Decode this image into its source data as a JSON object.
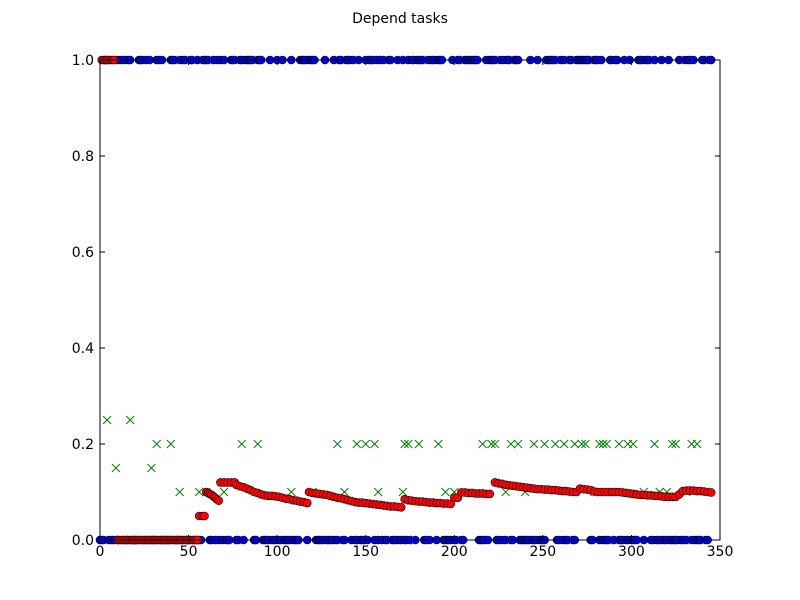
{
  "chart_data": {
    "type": "scatter",
    "title": "Depend tasks",
    "xlabel": "",
    "ylabel": "",
    "xlim": [
      0,
      350
    ],
    "ylim": [
      0.0,
      1.0
    ],
    "x_ticks": [
      "0",
      "50",
      "100",
      "150",
      "200",
      "250",
      "300",
      "350"
    ],
    "y_ticks": [
      "0.0",
      "0.2",
      "0.4",
      "0.6",
      "0.8",
      "1.0"
    ],
    "grid": false,
    "legend": "none",
    "series": [
      {
        "marker": "circle",
        "color": "#0000ff",
        "value_set": [
          0.0,
          1.0
        ],
        "x_range": [
          0,
          345
        ],
        "note_points": "binary per-task series: each task x plotted at 0 or 1"
      },
      {
        "marker": "x",
        "color": "#008000",
        "points": [
          [
            4,
            0.25
          ],
          [
            9,
            0.15
          ],
          [
            17,
            0.25
          ],
          [
            29,
            0.15
          ],
          [
            32,
            0.2
          ],
          [
            40,
            0.2
          ],
          [
            45,
            0.1
          ],
          [
            56,
            0.1
          ],
          [
            60,
            0.1
          ],
          [
            70,
            0.1
          ],
          [
            80,
            0.2
          ],
          [
            89,
            0.2
          ],
          [
            108,
            0.1
          ],
          [
            120,
            0.1
          ],
          [
            134,
            0.2
          ],
          [
            138,
            0.1
          ],
          [
            145,
            0.2
          ],
          [
            150,
            0.2
          ],
          [
            155,
            0.2
          ],
          [
            157,
            0.1
          ],
          [
            171,
            0.1
          ],
          [
            172,
            0.2
          ],
          [
            174,
            0.2
          ],
          [
            180,
            0.2
          ],
          [
            191,
            0.2
          ],
          [
            195,
            0.1
          ],
          [
            200,
            0.1
          ],
          [
            216,
            0.2
          ],
          [
            221,
            0.2
          ],
          [
            223,
            0.2
          ],
          [
            229,
            0.1
          ],
          [
            232,
            0.2
          ],
          [
            236,
            0.2
          ],
          [
            240,
            0.1
          ],
          [
            245,
            0.2
          ],
          [
            251,
            0.2
          ],
          [
            257,
            0.2
          ],
          [
            262,
            0.2
          ],
          [
            268,
            0.2
          ],
          [
            272,
            0.2
          ],
          [
            274,
            0.2
          ],
          [
            279,
            0.1
          ],
          [
            282,
            0.2
          ],
          [
            284,
            0.2
          ],
          [
            286,
            0.2
          ],
          [
            293,
            0.2
          ],
          [
            298,
            0.2
          ],
          [
            301,
            0.2
          ],
          [
            307,
            0.1
          ],
          [
            313,
            0.2
          ],
          [
            316,
            0.1
          ],
          [
            320,
            0.1
          ],
          [
            323,
            0.2
          ],
          [
            325,
            0.2
          ],
          [
            331,
            0.1
          ],
          [
            334,
            0.2
          ],
          [
            337,
            0.2
          ]
        ]
      },
      {
        "marker": "circle",
        "color": "#ff0000",
        "points": [
          [
            1,
            1.0
          ],
          [
            2,
            1.0
          ],
          [
            3,
            1.0
          ],
          [
            4,
            1.0
          ],
          [
            5,
            1.0
          ],
          [
            6,
            1.0
          ],
          [
            7,
            1.0
          ],
          [
            8,
            1.0
          ],
          [
            10,
            0.0
          ],
          [
            55,
            0.0
          ],
          [
            56,
            0.05
          ],
          [
            58,
            0.05
          ],
          [
            59,
            0.05
          ],
          [
            60,
            0.1
          ],
          [
            61,
            0.098
          ],
          [
            62,
            0.096
          ],
          [
            63,
            0.094
          ],
          [
            64,
            0.091
          ],
          [
            65,
            0.088
          ],
          [
            66,
            0.085
          ],
          [
            67,
            0.082
          ],
          [
            68,
            0.12
          ],
          [
            70,
            0.12
          ],
          [
            72,
            0.12
          ],
          [
            74,
            0.12
          ],
          [
            76,
            0.12
          ],
          [
            77,
            0.115
          ],
          [
            79,
            0.112
          ],
          [
            81,
            0.11
          ],
          [
            83,
            0.107
          ],
          [
            85,
            0.104
          ],
          [
            87,
            0.1
          ],
          [
            89,
            0.098
          ],
          [
            91,
            0.095
          ],
          [
            93,
            0.093
          ],
          [
            95,
            0.092
          ],
          [
            97,
            0.092
          ],
          [
            99,
            0.091
          ],
          [
            101,
            0.09
          ],
          [
            103,
            0.088
          ],
          [
            105,
            0.086
          ],
          [
            107,
            0.085
          ],
          [
            109,
            0.083
          ],
          [
            111,
            0.082
          ],
          [
            113,
            0.08
          ],
          [
            115,
            0.079
          ],
          [
            117,
            0.077
          ],
          [
            118,
            0.1
          ],
          [
            120,
            0.098
          ],
          [
            122,
            0.097
          ],
          [
            124,
            0.096
          ],
          [
            126,
            0.095
          ],
          [
            128,
            0.094
          ],
          [
            130,
            0.092
          ],
          [
            132,
            0.09
          ],
          [
            134,
            0.088
          ],
          [
            136,
            0.087
          ],
          [
            138,
            0.085
          ],
          [
            140,
            0.083
          ],
          [
            142,
            0.081
          ],
          [
            144,
            0.079
          ],
          [
            146,
            0.078
          ],
          [
            148,
            0.078
          ],
          [
            150,
            0.077
          ],
          [
            152,
            0.076
          ],
          [
            154,
            0.075
          ],
          [
            156,
            0.074
          ],
          [
            158,
            0.073
          ],
          [
            160,
            0.072
          ],
          [
            162,
            0.071
          ],
          [
            164,
            0.07
          ],
          [
            166,
            0.07
          ],
          [
            168,
            0.069
          ],
          [
            170,
            0.068
          ],
          [
            172,
            0.085
          ],
          [
            174,
            0.083
          ],
          [
            176,
            0.082
          ],
          [
            178,
            0.081
          ],
          [
            180,
            0.08
          ],
          [
            182,
            0.08
          ],
          [
            184,
            0.079
          ],
          [
            186,
            0.078
          ],
          [
            188,
            0.078
          ],
          [
            190,
            0.077
          ],
          [
            192,
            0.077
          ],
          [
            194,
            0.076
          ],
          [
            196,
            0.076
          ],
          [
            198,
            0.075
          ],
          [
            200,
            0.088
          ],
          [
            202,
            0.088
          ],
          [
            204,
            0.099
          ],
          [
            206,
            0.099
          ],
          [
            208,
            0.098
          ],
          [
            210,
            0.098
          ],
          [
            212,
            0.097
          ],
          [
            214,
            0.097
          ],
          [
            216,
            0.097
          ],
          [
            218,
            0.096
          ],
          [
            220,
            0.096
          ],
          [
            223,
            0.12
          ],
          [
            225,
            0.118
          ],
          [
            227,
            0.117
          ],
          [
            229,
            0.115
          ],
          [
            231,
            0.114
          ],
          [
            233,
            0.113
          ],
          [
            235,
            0.112
          ],
          [
            237,
            0.111
          ],
          [
            239,
            0.11
          ],
          [
            241,
            0.109
          ],
          [
            243,
            0.108
          ],
          [
            245,
            0.107
          ],
          [
            247,
            0.106
          ],
          [
            249,
            0.106
          ],
          [
            251,
            0.105
          ],
          [
            253,
            0.105
          ],
          [
            255,
            0.104
          ],
          [
            257,
            0.104
          ],
          [
            259,
            0.103
          ],
          [
            261,
            0.102
          ],
          [
            263,
            0.102
          ],
          [
            265,
            0.101
          ],
          [
            267,
            0.1
          ],
          [
            269,
            0.1
          ],
          [
            271,
            0.107
          ],
          [
            273,
            0.106
          ],
          [
            275,
            0.105
          ],
          [
            277,
            0.104
          ],
          [
            279,
            0.101
          ],
          [
            281,
            0.1
          ],
          [
            283,
            0.1
          ],
          [
            285,
            0.1
          ],
          [
            287,
            0.1
          ],
          [
            289,
            0.1
          ],
          [
            291,
            0.1
          ],
          [
            293,
            0.1
          ],
          [
            295,
            0.099
          ],
          [
            297,
            0.098
          ],
          [
            299,
            0.097
          ],
          [
            301,
            0.096
          ],
          [
            303,
            0.095
          ],
          [
            305,
            0.094
          ],
          [
            307,
            0.094
          ],
          [
            309,
            0.093
          ],
          [
            311,
            0.093
          ],
          [
            313,
            0.092
          ],
          [
            315,
            0.092
          ],
          [
            317,
            0.091
          ],
          [
            319,
            0.09
          ],
          [
            321,
            0.09
          ],
          [
            323,
            0.09
          ],
          [
            325,
            0.09
          ],
          [
            327,
            0.095
          ],
          [
            329,
            0.102
          ],
          [
            331,
            0.103
          ],
          [
            333,
            0.103
          ],
          [
            335,
            0.103
          ],
          [
            337,
            0.102
          ],
          [
            339,
            0.102
          ],
          [
            341,
            0.101
          ],
          [
            343,
            0.1
          ],
          [
            345,
            0.099
          ]
        ]
      }
    ]
  }
}
